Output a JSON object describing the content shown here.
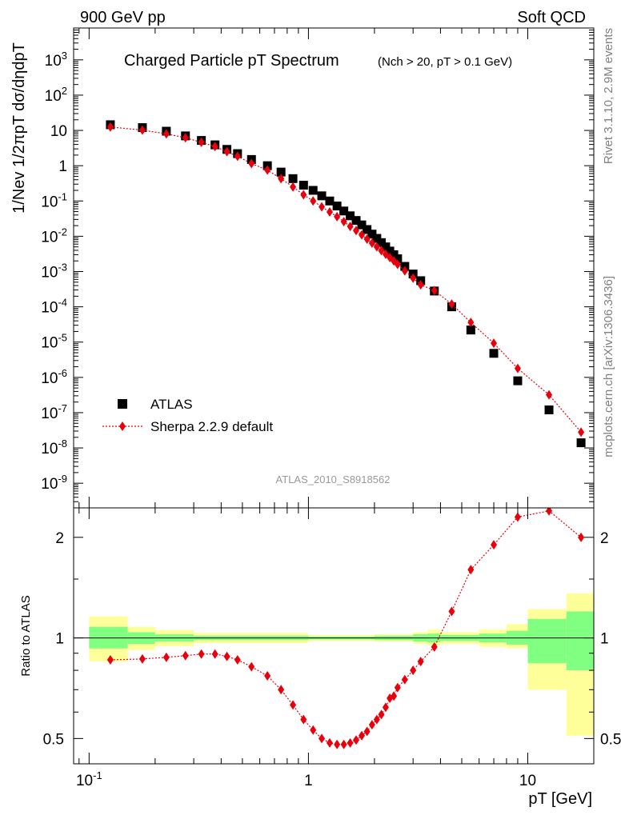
{
  "header": {
    "left": "900 GeV pp",
    "right": "Soft QCD"
  },
  "side_labels": {
    "top": "Rivet 3.1.10,  2.9M events",
    "bottom": "mcplots.cern.ch [arXiv:1306.3436]"
  },
  "analysis_tag": "ATLAS_2010_S8918562",
  "chart_data": [
    {
      "type": "scatter",
      "title": "Charged Particle pT Spectrum",
      "subtitle": "(Nch > 20, pT > 0.1 GeV)",
      "ylabel": "1/Nev 1/2πpT dσ/dηdpT",
      "xlabel": "",
      "x_scale": "log",
      "y_scale": "log",
      "xlim": [
        0.085,
        20
      ],
      "ylim": [
        2e-10,
        8000
      ],
      "y_tick_labels": [
        "10^-9",
        "10^-8",
        "10^-7",
        "10^-6",
        "10^-5",
        "10^-4",
        "10^-3",
        "10^-2",
        "10^-1",
        "1",
        "10",
        "10^2",
        "10^3"
      ],
      "legend": {
        "placement": "bottom-left",
        "entries": [
          "ATLAS",
          "Sherpa 2.2.9 default"
        ]
      },
      "series": [
        {
          "name": "ATLAS",
          "marker": "square",
          "color": "#000000",
          "x": [
            0.125,
            0.175,
            0.225,
            0.275,
            0.325,
            0.375,
            0.425,
            0.475,
            0.55,
            0.65,
            0.75,
            0.85,
            0.95,
            1.05,
            1.15,
            1.25,
            1.35,
            1.45,
            1.55,
            1.65,
            1.75,
            1.85,
            1.95,
            2.05,
            2.15,
            2.25,
            2.35,
            2.45,
            2.55,
            2.75,
            3.0,
            3.25,
            3.75,
            4.5,
            5.5,
            7.0,
            9.0,
            12.5,
            17.5
          ],
          "y": [
            14.5,
            12.0,
            9.5,
            7.0,
            5.2,
            3.9,
            2.9,
            2.2,
            1.5,
            1.0,
            0.66,
            0.43,
            0.28,
            0.2,
            0.14,
            0.1,
            0.072,
            0.052,
            0.038,
            0.028,
            0.021,
            0.0155,
            0.0115,
            0.0087,
            0.0066,
            0.005,
            0.0038,
            0.003,
            0.0023,
            0.0014,
            0.00085,
            0.00055,
            0.00028,
            0.0001,
            2.2e-05,
            4.8e-06,
            8e-07,
            1.2e-07,
            1.4e-08
          ]
        },
        {
          "name": "Sherpa 2.2.9 default",
          "marker": "diamond",
          "line": "dotted",
          "color": "#e8000b",
          "x": [
            0.125,
            0.175,
            0.225,
            0.275,
            0.325,
            0.375,
            0.425,
            0.475,
            0.55,
            0.65,
            0.75,
            0.85,
            0.95,
            1.05,
            1.15,
            1.25,
            1.35,
            1.45,
            1.55,
            1.65,
            1.75,
            1.85,
            1.95,
            2.05,
            2.15,
            2.25,
            2.35,
            2.45,
            2.55,
            2.75,
            3.0,
            3.25,
            3.75,
            4.5,
            5.5,
            7.0,
            9.0,
            12.5,
            17.5
          ],
          "y": [
            12.5,
            10.2,
            8.0,
            6.2,
            4.6,
            3.5,
            2.5,
            1.85,
            1.15,
            0.75,
            0.43,
            0.25,
            0.15,
            0.1,
            0.068,
            0.049,
            0.036,
            0.026,
            0.019,
            0.0145,
            0.011,
            0.0083,
            0.0064,
            0.005,
            0.0039,
            0.0031,
            0.0025,
            0.002,
            0.0016,
            0.00105,
            0.00065,
            0.00042,
            0.00029,
            0.00012,
            3.6e-05,
            9.3e-06,
            1.8e-06,
            3.2e-07,
            2.8e-08
          ]
        }
      ]
    },
    {
      "type": "scatter",
      "xlabel": "pT  [GeV]",
      "ylabel": "Ratio to ATLAS",
      "x_scale": "log",
      "y_scale": "log",
      "xlim": [
        0.085,
        20
      ],
      "ylim": [
        0.42,
        2.45
      ],
      "x_tick_labels": [
        "10^-1",
        "1",
        "10"
      ],
      "y_tick_labels": [
        "0.5",
        "1",
        "2"
      ],
      "reference": 1,
      "uncertainty_bands": {
        "bins": [
          [
            0.1,
            0.15
          ],
          [
            0.15,
            0.2
          ],
          [
            0.2,
            0.3
          ],
          [
            0.3,
            1.0
          ],
          [
            1.0,
            2.0
          ],
          [
            2.0,
            3.0
          ],
          [
            3.0,
            3.5
          ],
          [
            3.5,
            4.0
          ],
          [
            4.0,
            5.0
          ],
          [
            5.0,
            6.0
          ],
          [
            6.0,
            8.0
          ],
          [
            8.0,
            10.0
          ],
          [
            10.0,
            15.0
          ],
          [
            15.0,
            20.0
          ]
        ],
        "stat_color": "#80ff80",
        "total_color": "#ffff99",
        "stat": [
          [
            0.93,
            1.08
          ],
          [
            0.96,
            1.04
          ],
          [
            0.975,
            1.025
          ],
          [
            0.985,
            1.015
          ],
          [
            0.99,
            1.01
          ],
          [
            0.985,
            1.015
          ],
          [
            0.975,
            1.025
          ],
          [
            0.97,
            1.03
          ],
          [
            0.98,
            1.02
          ],
          [
            0.98,
            1.02
          ],
          [
            0.97,
            1.03
          ],
          [
            0.955,
            1.05
          ],
          [
            0.84,
            1.14
          ],
          [
            0.8,
            1.2
          ]
        ],
        "total": [
          [
            0.85,
            1.16
          ],
          [
            0.92,
            1.08
          ],
          [
            0.945,
            1.055
          ],
          [
            0.965,
            1.035
          ],
          [
            0.98,
            1.02
          ],
          [
            0.975,
            1.025
          ],
          [
            0.96,
            1.04
          ],
          [
            0.95,
            1.06
          ],
          [
            0.96,
            1.04
          ],
          [
            0.96,
            1.04
          ],
          [
            0.94,
            1.06
          ],
          [
            0.93,
            1.1
          ],
          [
            0.7,
            1.22
          ],
          [
            0.51,
            1.36
          ]
        ]
      },
      "series": [
        {
          "name": "Sherpa 2.2.9 default",
          "marker": "diamond",
          "line": "dotted",
          "color": "#e8000b",
          "x": [
            0.125,
            0.175,
            0.225,
            0.275,
            0.325,
            0.375,
            0.425,
            0.475,
            0.55,
            0.65,
            0.75,
            0.85,
            0.95,
            1.05,
            1.15,
            1.25,
            1.35,
            1.45,
            1.55,
            1.65,
            1.75,
            1.85,
            1.95,
            2.05,
            2.15,
            2.25,
            2.35,
            2.45,
            2.55,
            2.75,
            3.0,
            3.25,
            3.75,
            4.5,
            5.5,
            7.0,
            9.0,
            12.5,
            17.5
          ],
          "y": [
            0.86,
            0.865,
            0.875,
            0.885,
            0.895,
            0.895,
            0.88,
            0.86,
            0.82,
            0.77,
            0.7,
            0.63,
            0.57,
            0.53,
            0.5,
            0.485,
            0.48,
            0.48,
            0.485,
            0.495,
            0.51,
            0.525,
            0.55,
            0.57,
            0.59,
            0.62,
            0.66,
            0.67,
            0.71,
            0.75,
            0.8,
            0.85,
            0.94,
            1.2,
            1.6,
            1.9,
            2.3,
            2.4,
            2.0
          ]
        }
      ]
    }
  ]
}
